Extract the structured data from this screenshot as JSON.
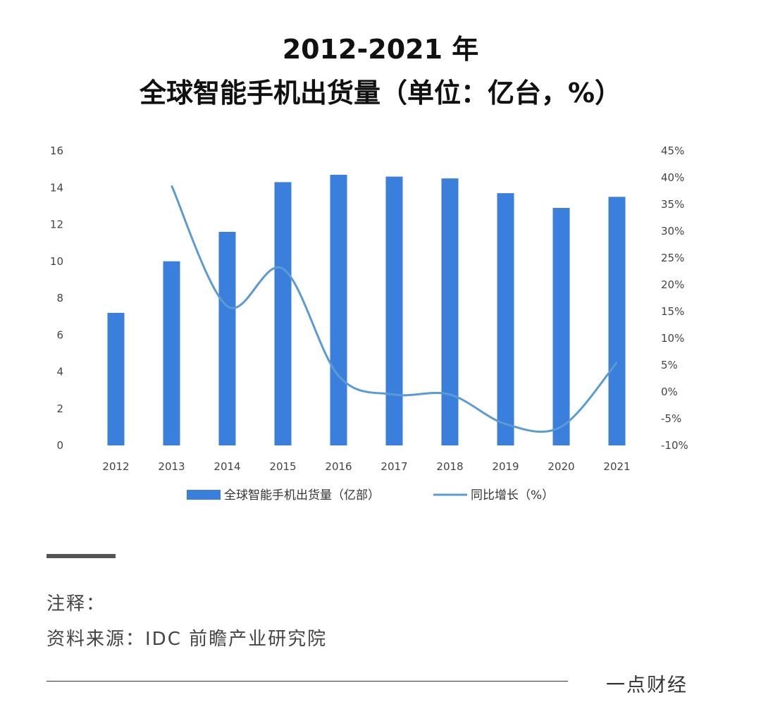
{
  "title": {
    "line1": "2012-2021 年",
    "line2": "全球智能手机出货量（单位：亿台，%）"
  },
  "chart_data": {
    "type": "bar",
    "categories": [
      "2012",
      "2013",
      "2014",
      "2015",
      "2016",
      "2017",
      "2018",
      "2019",
      "2020",
      "2021"
    ],
    "series": [
      {
        "name": "全球智能手机出货量（亿部）",
        "type": "bar",
        "axis": "left",
        "values": [
          7.2,
          10.0,
          11.6,
          14.3,
          14.7,
          14.6,
          14.5,
          13.7,
          12.9,
          13.5
        ],
        "color": "#3a7fdc"
      },
      {
        "name": "同比增长（%）",
        "type": "line",
        "axis": "right",
        "values": [
          null,
          38.5,
          16.0,
          23.0,
          3.0,
          -0.5,
          -0.5,
          -6.0,
          -6.5,
          5.5
        ],
        "color": "#5b9bd5"
      }
    ],
    "y_left": {
      "lim": [
        0,
        16
      ],
      "ticks": [
        "0",
        "2",
        "4",
        "6",
        "8",
        "10",
        "12",
        "14",
        "16"
      ]
    },
    "y_right": {
      "lim": [
        -10,
        45
      ],
      "ticks": [
        "-10%",
        "-5%",
        "0%",
        "5%",
        "10%",
        "15%",
        "20%",
        "25%",
        "30%",
        "35%",
        "40%",
        "45%"
      ]
    },
    "grid": false,
    "legend_position": "bottom"
  },
  "notes": {
    "label": "注释：",
    "source": "资料来源：IDC 前瞻产业研究院"
  },
  "footer": {
    "brand": "一点财经"
  }
}
